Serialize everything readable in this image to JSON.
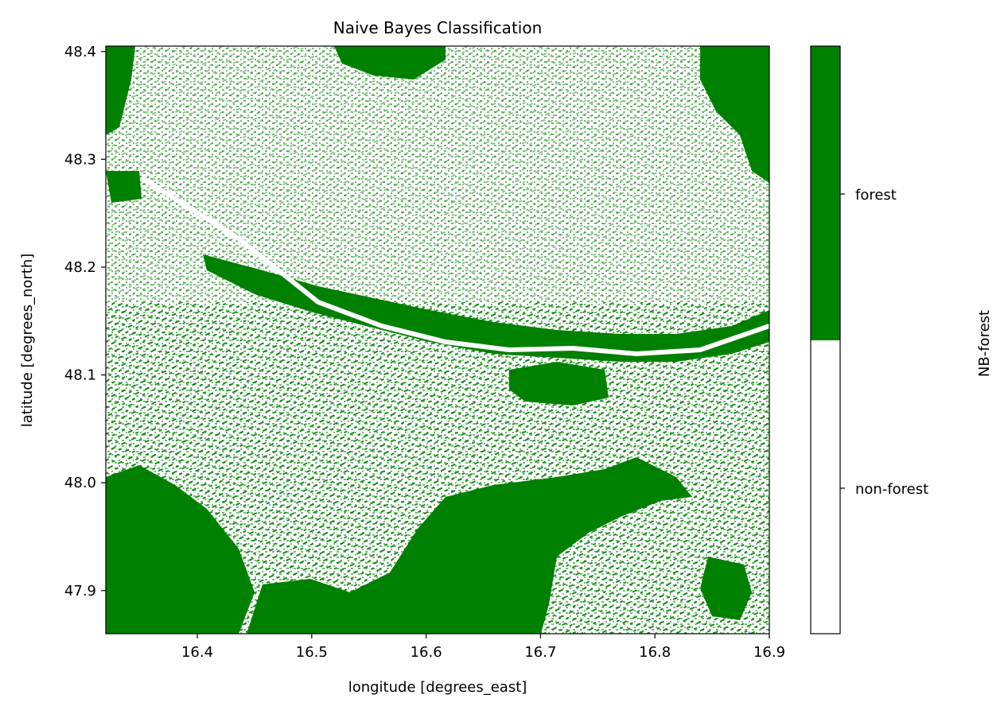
{
  "chart_data": {
    "type": "heatmap",
    "title": "Naive Bayes Classification",
    "xlabel": "longitude [degrees_east]",
    "ylabel": "latitude [degrees_north]",
    "xlim": [
      16.32,
      16.9
    ],
    "ylim": [
      47.86,
      48.405
    ],
    "xticks": [
      16.4,
      16.5,
      16.6,
      16.7,
      16.8,
      16.9
    ],
    "xtick_labels": [
      "16.4",
      "16.5",
      "16.6",
      "16.7",
      "16.8",
      "16.9"
    ],
    "yticks": [
      47.9,
      48.0,
      48.1,
      48.2,
      48.3,
      48.4
    ],
    "ytick_labels": [
      "47.9",
      "48.0",
      "48.1",
      "48.2",
      "48.3",
      "48.4"
    ],
    "colorbar": {
      "label": "NB-forest",
      "classes": [
        {
          "label": "non-forest",
          "color": "#ffffff"
        },
        {
          "label": "forest",
          "color": "#008000"
        }
      ]
    },
    "grid": false
  }
}
